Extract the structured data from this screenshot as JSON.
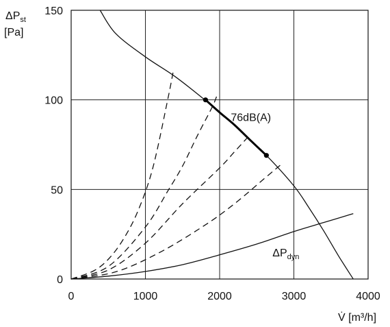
{
  "chart_data": {
    "type": "line",
    "title": "",
    "xlabel": {
      "main": "V̇ [m³/h]"
    },
    "ylabel": {
      "symbol": "ΔP",
      "sub": "st",
      "unit": "[Pa]"
    },
    "xlim": [
      0,
      4000
    ],
    "ylim": [
      0,
      150
    ],
    "x_ticks": [
      0,
      1000,
      2000,
      3000,
      4000
    ],
    "y_ticks": [
      0,
      50,
      100,
      150
    ],
    "x_tick_labels": [
      "0",
      "1000",
      "2000",
      "3000",
      "4000"
    ],
    "y_tick_labels": [
      "0",
      "50",
      "100",
      "150"
    ],
    "grid": true,
    "series": [
      {
        "style": "solid",
        "x": [
          390,
          600,
          1000,
          1400,
          1800,
          2200,
          2630,
          3000,
          3200,
          3400,
          3600,
          3800
        ],
        "y": [
          150,
          137,
          124,
          113,
          100,
          86,
          69,
          52,
          40,
          27,
          13,
          0
        ]
      },
      {
        "name_symbol": "ΔP",
        "name_sub": "dyn",
        "style": "solid",
        "x": [
          0,
          500,
          1000,
          1500,
          2000,
          2500,
          3000,
          3400,
          3800
        ],
        "y": [
          0,
          1.6,
          4.2,
          8,
          13.5,
          19.5,
          26.5,
          31.5,
          36.5
        ]
      },
      {
        "style": "dashed",
        "x": [
          0,
          300,
          500,
          700,
          900,
          1100,
          1300,
          1380
        ],
        "y": [
          0,
          4.5,
          11,
          22,
          38,
          62,
          100,
          117
        ]
      },
      {
        "style": "dashed",
        "x": [
          0,
          500,
          1000,
          1300,
          1500,
          1700,
          1900,
          1960
        ],
        "y": [
          0,
          7,
          29,
          49,
          63,
          80,
          96,
          102
        ]
      },
      {
        "style": "dashed",
        "x": [
          0,
          500,
          1000,
          1500,
          2000,
          2200,
          2420
        ],
        "y": [
          0,
          5,
          20,
          42,
          62,
          71,
          81
        ]
      },
      {
        "style": "dashed",
        "x": [
          0,
          600,
          1200,
          1800,
          2200,
          2600,
          2830
        ],
        "y": [
          0,
          4,
          15,
          30,
          42,
          56,
          64
        ]
      }
    ],
    "highlight": {
      "label": "76dB(A)",
      "x": [
        1810,
        2000,
        2200,
        2400,
        2630
      ],
      "y": [
        100,
        93,
        86,
        78,
        69
      ],
      "endpoints": [
        [
          1810,
          100
        ],
        [
          2630,
          69
        ]
      ]
    }
  }
}
